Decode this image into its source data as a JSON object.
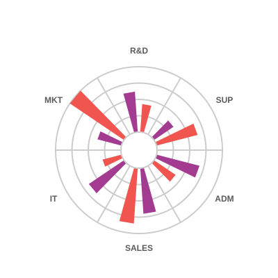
{
  "chart_data": {
    "type": "bar",
    "polar": true,
    "categories": [
      "R&D",
      "SUP",
      "ADM",
      "SALES",
      "IT",
      "MKT"
    ],
    "series": [
      {
        "values": [
          62,
          36,
          68,
          70,
          65,
          38
        ],
        "color": "#a33b91"
      },
      {
        "values": [
          43,
          65,
          40,
          85,
          30,
          100
        ],
        "color": "#f0564f"
      }
    ],
    "rlim": [
      0,
      100
    ],
    "grid": true,
    "grid_rings": [
      0,
      25,
      50,
      75,
      100
    ]
  }
}
